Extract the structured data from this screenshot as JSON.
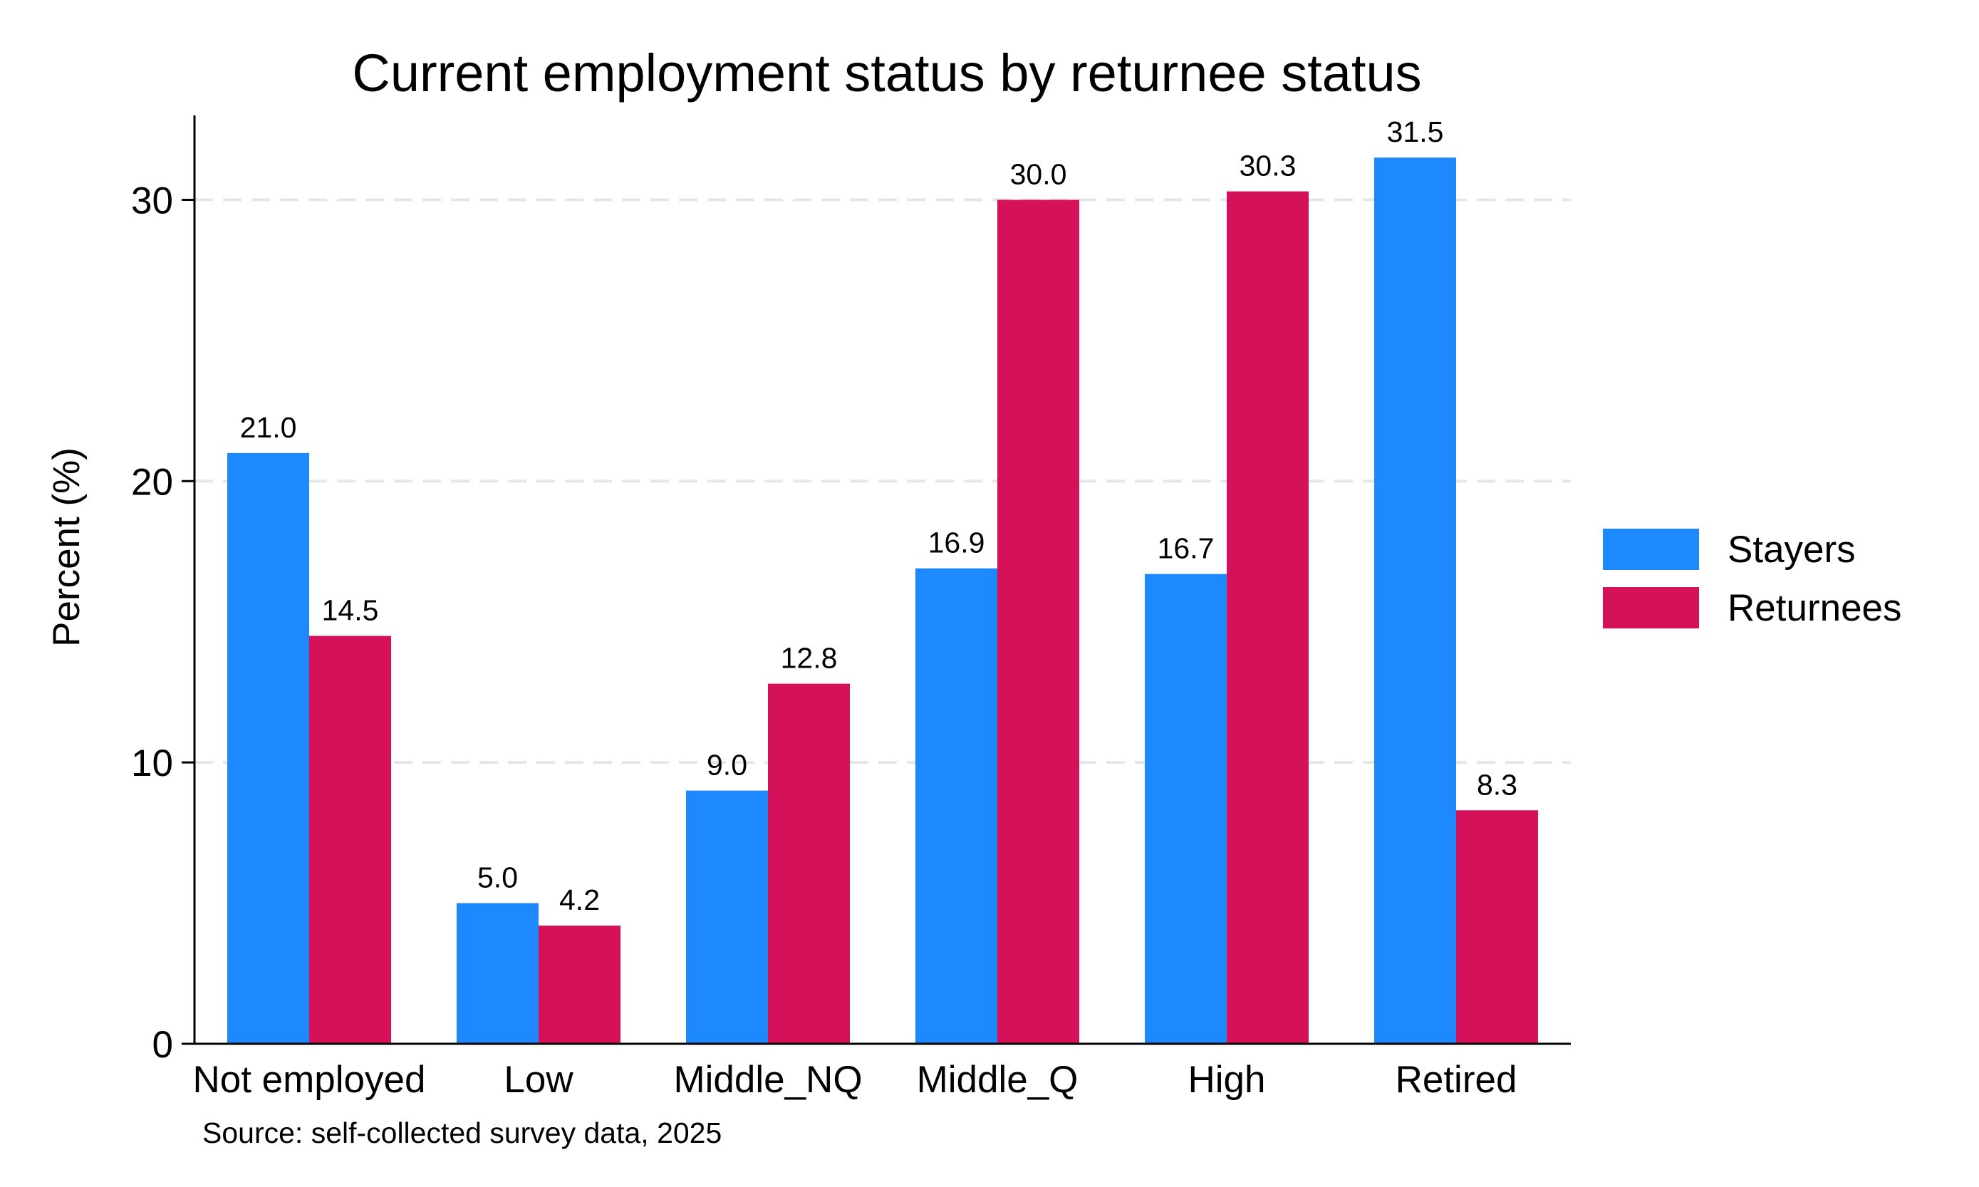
{
  "chart_data": {
    "type": "bar",
    "title": "Current employment status by returnee status",
    "ylabel": "Percent (%)",
    "xlabel": "",
    "categories": [
      "Not employed",
      "Low",
      "Middle_NQ",
      "Middle_Q",
      "High",
      "Retired"
    ],
    "series": [
      {
        "name": "Stayers",
        "color": "#1e88ff",
        "values": [
          21.0,
          5.0,
          9.0,
          16.9,
          16.7,
          31.5
        ],
        "labels": [
          "21.0",
          "5.0",
          "9.0",
          "16.9",
          "16.7",
          "31.5"
        ]
      },
      {
        "name": "Returnees",
        "color": "#d41159",
        "values": [
          14.5,
          4.2,
          12.8,
          30.0,
          30.3,
          8.3
        ],
        "labels": [
          "14.5",
          "4.2",
          "12.8",
          "30.0",
          "30.3",
          "8.3"
        ]
      }
    ],
    "ylim": [
      0,
      33
    ],
    "yticks": [
      0,
      10,
      20,
      30
    ],
    "grid": true,
    "legend_position": "right",
    "note": "Source: self-collected survey data, 2025"
  }
}
